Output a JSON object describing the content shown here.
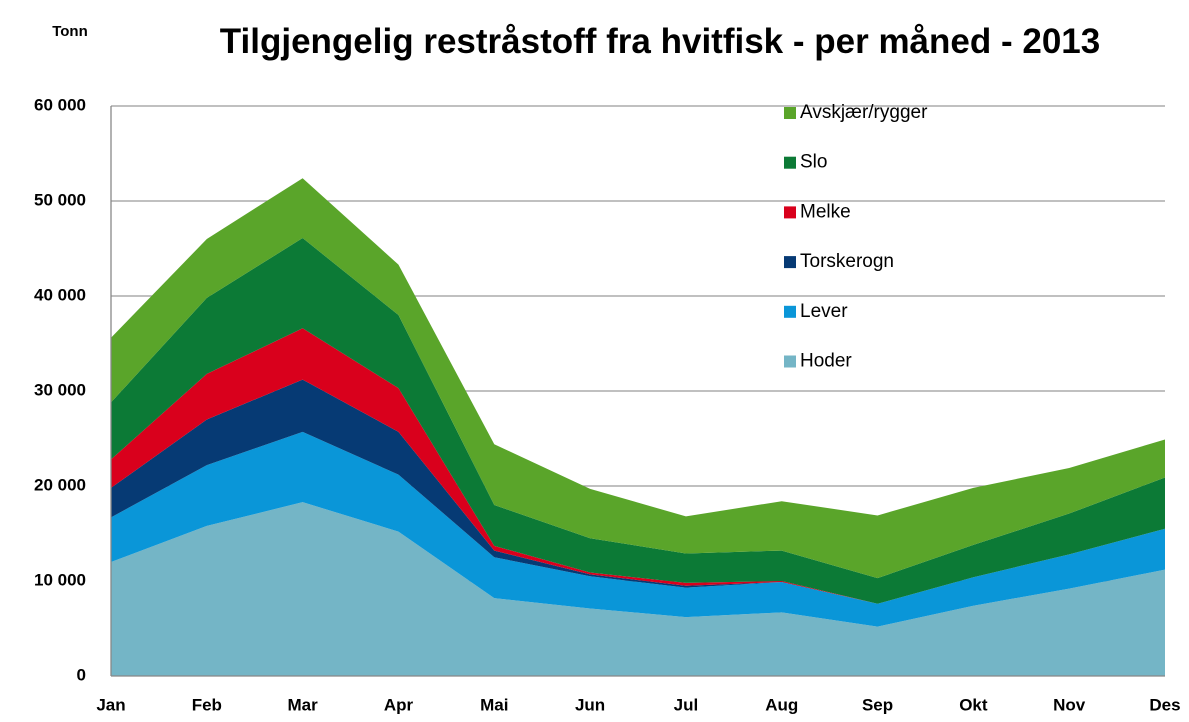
{
  "chart_data": {
    "type": "stacked-area",
    "title": "Tilgjengelig restråstoff fra hvitfisk - per måned - 2013",
    "y_label": "Tonn",
    "categories": [
      "Jan",
      "Feb",
      "Mar",
      "Apr",
      "Mai",
      "Jun",
      "Jul",
      "Aug",
      "Sep",
      "Okt",
      "Nov",
      "Des"
    ],
    "series": [
      {
        "name": "Hoder",
        "color": "#74b5c6",
        "values": [
          12000,
          15800,
          18300,
          15200,
          8200,
          7100,
          6200,
          6700,
          5200,
          7400,
          9200,
          11200
        ]
      },
      {
        "name": "Lever",
        "color": "#0a96d8",
        "values": [
          4700,
          6400,
          7400,
          6000,
          4300,
          3400,
          3100,
          3200,
          2400,
          3000,
          3600,
          4300
        ]
      },
      {
        "name": "Torskerogn",
        "color": "#063a74",
        "values": [
          3100,
          4800,
          5500,
          4500,
          700,
          200,
          200,
          0,
          0,
          0,
          0,
          0
        ]
      },
      {
        "name": "Melke",
        "color": "#d9001c",
        "values": [
          3000,
          4800,
          5400,
          4600,
          500,
          200,
          300,
          100,
          0,
          0,
          0,
          0
        ]
      },
      {
        "name": "Slo",
        "color": "#0c7a36",
        "values": [
          6000,
          8000,
          9500,
          7700,
          4300,
          3600,
          3100,
          3200,
          2700,
          3400,
          4300,
          5400
        ]
      },
      {
        "name": "Avskjær/rygger",
        "color": "#5aa52a",
        "values": [
          6800,
          6200,
          6300,
          5300,
          6400,
          5200,
          3900,
          5200,
          6600,
          6000,
          4800,
          4000
        ]
      }
    ],
    "ylim": [
      0,
      60000
    ],
    "yticks": [
      0,
      {
        "value": 10000,
        "label": "10 000"
      },
      {
        "value": 20000,
        "label": "20 000"
      },
      {
        "value": 30000,
        "label": "30 000"
      },
      {
        "value": 40000,
        "label": "40 000"
      },
      {
        "value": 50000,
        "label": "50 000"
      },
      {
        "value": 60000,
        "label": "60 000"
      }
    ],
    "grid": true
  }
}
